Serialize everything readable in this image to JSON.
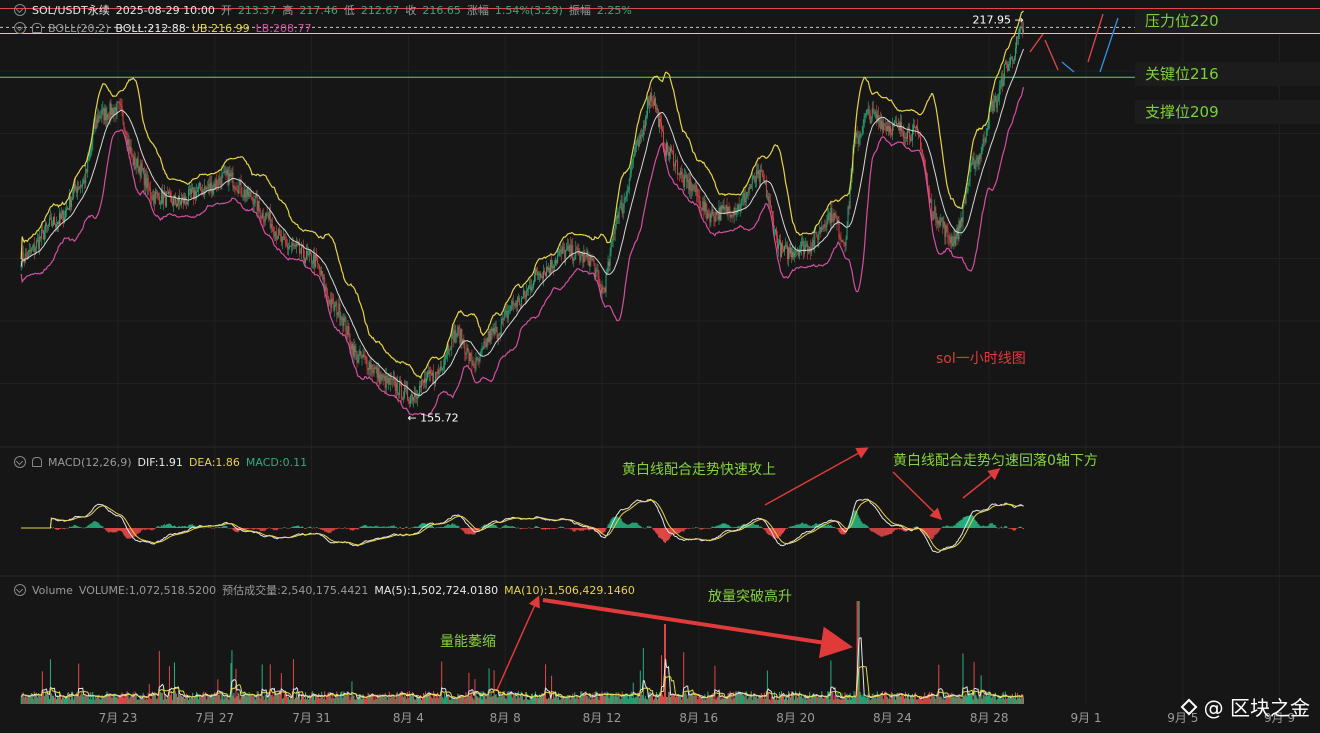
{
  "header": {
    "symbol": "SOL/USDT永续",
    "datetime": "2025-08-29 10:00",
    "open_label": "开",
    "open": "213.37",
    "high_label": "高",
    "high": "217.46",
    "low_label": "低",
    "low": "212.67",
    "close_label": "收",
    "close": "216.65",
    "change_label": "涨幅",
    "change": "1.54%(3.29)",
    "amp_label": "振幅",
    "amp": "2.25%"
  },
  "boll": {
    "label": "BOLL(20,2)",
    "mid": "BOLL:212.88",
    "ub": "UB:216.99",
    "lb": "LB:208.77"
  },
  "macd": {
    "label": "MACD(12,26,9)",
    "dif": "DIF:1.91",
    "dea": "DEA:1.86",
    "macd": "MACD:0.11"
  },
  "volume": {
    "label": "Volume",
    "vol": "VOLUME:1,072,518.5200",
    "est": "预估成交量:2,540,175.4421",
    "ma5": "MA(5):1,502,724.0180",
    "ma10": "MA(10):1,506,429.1460"
  },
  "levels": {
    "resistance": "压力位220",
    "key": "关键位216",
    "support": "支撑位209"
  },
  "annotations": {
    "chart_title": "sol一小时线图",
    "macd_up": "黄白线配合走势快速攻上",
    "macd_down": "黄白线配合走势匀速回落0轴下方",
    "vol_shrink": "量能萎缩",
    "vol_break": "放量突破高升"
  },
  "price_marks": {
    "high": "217.95",
    "low": "155.72"
  },
  "watermark": "@ 区块之金",
  "colors": {
    "up": "#27b07d",
    "down": "#e04848",
    "ub": "#e6d44a",
    "mid": "#d8d8d8",
    "lb": "#d24fa0",
    "resistance": "#e04848",
    "key": "#e6d44a",
    "support": "#7ad13b"
  },
  "chart_data": {
    "type": "candlestick",
    "x_ticks": [
      "7月 23",
      "7月 27",
      "7月 31",
      "8月 4",
      "8月 8",
      "8月 12",
      "8月 16",
      "8月 20",
      "8月 24",
      "8月 28",
      "9月 1",
      "9月 5",
      "9月 9"
    ],
    "price_anchors": [
      [
        "7/19 00:00",
        180
      ],
      [
        "7/20 12:00",
        186
      ],
      [
        "7/21 12:00",
        192
      ],
      [
        "7/22 06:00",
        203
      ],
      [
        "7/23 00:00",
        204
      ],
      [
        "7/23 18:00",
        195
      ],
      [
        "7/24 12:00",
        190
      ],
      [
        "7/25 12:00",
        189
      ],
      [
        "7/26 12:00",
        191
      ],
      [
        "7/27 12:00",
        193
      ],
      [
        "7/28 12:00",
        190
      ],
      [
        "7/29 00:00",
        187
      ],
      [
        "7/30 00:00",
        182
      ],
      [
        "7/31 00:00",
        180
      ],
      [
        "8/1 00:00",
        172
      ],
      [
        "8/2 00:00",
        164
      ],
      [
        "8/3 06:00",
        160
      ],
      [
        "8/4 00:00",
        158
      ],
      [
        "8/5 00:00",
        161
      ],
      [
        "8/6 00:00",
        168
      ],
      [
        "8/6 18:00",
        163
      ],
      [
        "8/7 12:00",
        168
      ],
      [
        "8/8 12:00",
        173
      ],
      [
        "8/9 12:00",
        178
      ],
      [
        "8/10 12:00",
        181
      ],
      [
        "8/11 12:00",
        180
      ],
      [
        "8/12 00:00",
        175
      ],
      [
        "8/12 18:00",
        188
      ],
      [
        "8/13 12:00",
        198
      ],
      [
        "8/14 00:00",
        206
      ],
      [
        "8/14 18:00",
        197
      ],
      [
        "8/15 12:00",
        192
      ],
      [
        "8/16 12:00",
        187
      ],
      [
        "8/17 12:00",
        188
      ],
      [
        "8/18 12:00",
        193
      ],
      [
        "8/19 12:00",
        181
      ],
      [
        "8/20 12:00",
        182
      ],
      [
        "8/21 12:00",
        187
      ],
      [
        "8/22 00:00",
        183
      ],
      [
        "8/22 12:00",
        199
      ],
      [
        "8/23 00:00",
        203
      ],
      [
        "8/24 00:00",
        201
      ],
      [
        "8/25 00:00",
        200
      ],
      [
        "8/25 18:00",
        187
      ],
      [
        "8/26 12:00",
        183
      ],
      [
        "8/27 12:00",
        196
      ],
      [
        "8/28 06:00",
        205
      ],
      [
        "8/28 18:00",
        211
      ],
      [
        "8/29 10:00",
        216.65
      ]
    ],
    "price_high": 217.95,
    "price_low": 155.72,
    "indicators": [
      "BOLL(20,2)",
      "MACD(12,26,9)",
      "Volume MA(5)",
      "Volume MA(10)"
    ]
  }
}
